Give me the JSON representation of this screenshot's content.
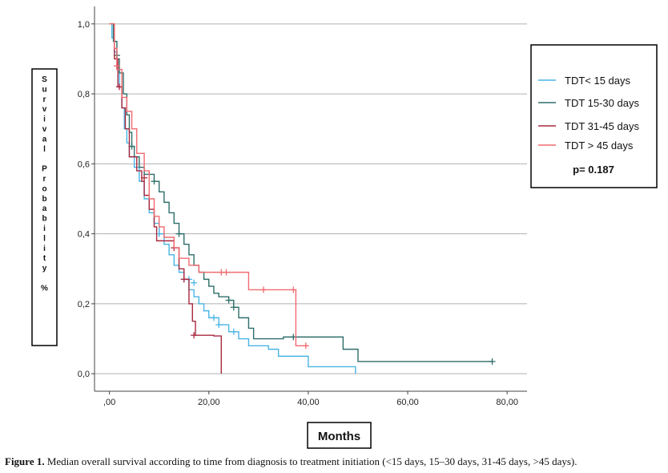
{
  "chart_data": {
    "type": "line",
    "title": "",
    "xlabel": "Months",
    "ylabel": "Survival Probability %",
    "xlim": [
      -3,
      84
    ],
    "ylim": [
      -0.05,
      1.05
    ],
    "x_ticks": [
      0,
      20,
      40,
      60,
      80
    ],
    "x_tick_labels": [
      ",00",
      "20,00",
      "40,00",
      "60,00",
      "80,00"
    ],
    "y_ticks": [
      0,
      0.2,
      0.4,
      0.6,
      0.8,
      1.0
    ],
    "y_tick_labels": [
      "0,0",
      "0,2",
      "0,4",
      "0,6",
      "0,8",
      "1,0"
    ],
    "grid": "horizontal",
    "legend_placement": "right",
    "p_value": "p= 0.187",
    "series": [
      {
        "name": "TDT< 15 days",
        "color": "#4ab4e6",
        "steps": [
          [
            0,
            1.0
          ],
          [
            0.5,
            0.96
          ],
          [
            1,
            0.92
          ],
          [
            1.5,
            0.87
          ],
          [
            2,
            0.82
          ],
          [
            2.5,
            0.76
          ],
          [
            3,
            0.7
          ],
          [
            3.5,
            0.66
          ],
          [
            4,
            0.62
          ],
          [
            5,
            0.59
          ],
          [
            6,
            0.55
          ],
          [
            7,
            0.5
          ],
          [
            8,
            0.46
          ],
          [
            9,
            0.43
          ],
          [
            10,
            0.4
          ],
          [
            11,
            0.37
          ],
          [
            12,
            0.34
          ],
          [
            13,
            0.31
          ],
          [
            14,
            0.29
          ],
          [
            15,
            0.27
          ],
          [
            16,
            0.24
          ],
          [
            17,
            0.22
          ],
          [
            18,
            0.2
          ],
          [
            19,
            0.18
          ],
          [
            20,
            0.16
          ],
          [
            22,
            0.14
          ],
          [
            24,
            0.12
          ],
          [
            26,
            0.1
          ],
          [
            28,
            0.08
          ],
          [
            32,
            0.07
          ],
          [
            34,
            0.05
          ],
          [
            40,
            0.02
          ],
          [
            49.5,
            0.0
          ]
        ],
        "censored": [
          [
            10,
            0.4
          ],
          [
            15,
            0.27
          ],
          [
            16,
            0.27
          ],
          [
            17,
            0.26
          ],
          [
            21,
            0.16
          ],
          [
            22,
            0.14
          ],
          [
            25,
            0.12
          ]
        ]
      },
      {
        "name": "TDT 15-30 days",
        "color": "#2e6e6a",
        "steps": [
          [
            0,
            1.0
          ],
          [
            0.8,
            0.95
          ],
          [
            1.5,
            0.9
          ],
          [
            2,
            0.86
          ],
          [
            2.8,
            0.8
          ],
          [
            3.5,
            0.74
          ],
          [
            4,
            0.69
          ],
          [
            4.5,
            0.65
          ],
          [
            5,
            0.62
          ],
          [
            6,
            0.59
          ],
          [
            7,
            0.57
          ],
          [
            9,
            0.55
          ],
          [
            10,
            0.52
          ],
          [
            11,
            0.49
          ],
          [
            12,
            0.46
          ],
          [
            13,
            0.43
          ],
          [
            14,
            0.4
          ],
          [
            15,
            0.37
          ],
          [
            16,
            0.34
          ],
          [
            17,
            0.31
          ],
          [
            18,
            0.29
          ],
          [
            19,
            0.27
          ],
          [
            20,
            0.25
          ],
          [
            21,
            0.23
          ],
          [
            22,
            0.22
          ],
          [
            24,
            0.21
          ],
          [
            25,
            0.19
          ],
          [
            26,
            0.16
          ],
          [
            28,
            0.13
          ],
          [
            29,
            0.1
          ],
          [
            35,
            0.105
          ],
          [
            47,
            0.07
          ],
          [
            50,
            0.035
          ],
          [
            77,
            0.035
          ]
        ],
        "censored": [
          [
            1.5,
            0.91
          ],
          [
            4.5,
            0.65
          ],
          [
            9,
            0.55
          ],
          [
            14,
            0.4
          ],
          [
            24,
            0.21
          ],
          [
            25,
            0.19
          ],
          [
            37,
            0.105
          ],
          [
            77,
            0.035
          ]
        ]
      },
      {
        "name": "TDT 31-45 days",
        "color": "#a8283e",
        "steps": [
          [
            0,
            1.0
          ],
          [
            1,
            0.9
          ],
          [
            1.7,
            0.82
          ],
          [
            2.5,
            0.76
          ],
          [
            3.2,
            0.7
          ],
          [
            4,
            0.62
          ],
          [
            5.5,
            0.58
          ],
          [
            6.5,
            0.55
          ],
          [
            7,
            0.51
          ],
          [
            8,
            0.47
          ],
          [
            9,
            0.42
          ],
          [
            9.5,
            0.38
          ],
          [
            13,
            0.36
          ],
          [
            14,
            0.3
          ],
          [
            15,
            0.27
          ],
          [
            16,
            0.2
          ],
          [
            16.7,
            0.15
          ],
          [
            17.3,
            0.11
          ],
          [
            21,
            0.108
          ],
          [
            22.5,
            0.0
          ]
        ],
        "censored": [
          [
            2,
            0.82
          ],
          [
            7,
            0.56
          ],
          [
            13,
            0.36
          ],
          [
            15,
            0.27
          ],
          [
            17,
            0.11
          ]
        ]
      },
      {
        "name": "TDT > 45 days",
        "color": "#f06a70",
        "steps": [
          [
            0,
            1.0
          ],
          [
            1,
            0.93
          ],
          [
            1.5,
            0.87
          ],
          [
            2.5,
            0.79
          ],
          [
            3.5,
            0.75
          ],
          [
            4.5,
            0.7
          ],
          [
            5.5,
            0.63
          ],
          [
            7,
            0.58
          ],
          [
            8,
            0.5
          ],
          [
            9,
            0.45
          ],
          [
            10,
            0.42
          ],
          [
            11,
            0.39
          ],
          [
            13,
            0.36
          ],
          [
            14,
            0.33
          ],
          [
            16,
            0.31
          ],
          [
            18,
            0.29
          ],
          [
            22,
            0.29
          ],
          [
            28,
            0.24
          ],
          [
            37,
            0.24
          ],
          [
            37.5,
            0.08
          ],
          [
            40,
            0.08
          ]
        ],
        "censored": [
          [
            1.5,
            0.88
          ],
          [
            22.5,
            0.29
          ],
          [
            23.5,
            0.29
          ],
          [
            31,
            0.24
          ],
          [
            37,
            0.24
          ],
          [
            39.5,
            0.08
          ]
        ]
      }
    ]
  },
  "caption": {
    "label": "Figure 1.",
    "text": " Median overall survival according to time from diagnosis to treatment initiation (<15 days, 15–30 days, 31-45 days, >45 days)."
  }
}
